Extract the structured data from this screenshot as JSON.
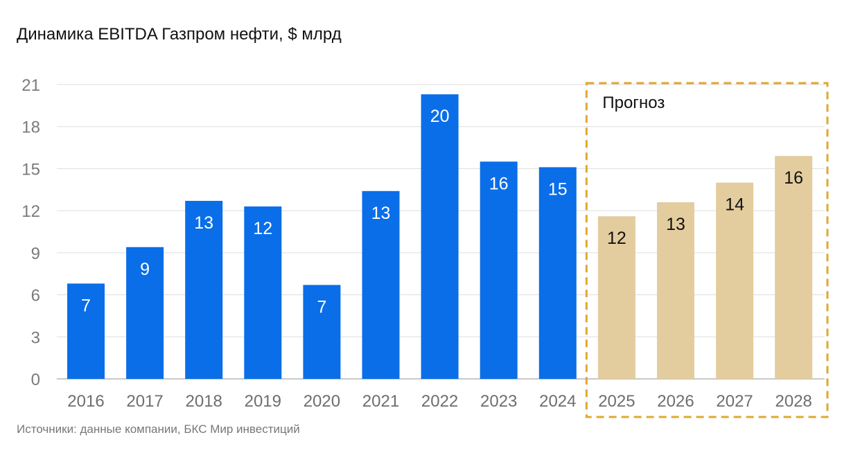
{
  "title": "Динамика EBITDA Газпром нефти, $ млрд",
  "source": "Источники: данные компании, БКС Мир инвестиций",
  "colors": {
    "actual": "#0a6ee8",
    "forecast": "#e3cc9e",
    "forecast_border": "#e0a82e",
    "grid": "#dddddd",
    "axis": "#c8c8c8"
  },
  "chart_data": {
    "type": "bar",
    "title": "Динамика EBITDA Газпром нефти, $ млрд",
    "categories": [
      "2016",
      "2017",
      "2018",
      "2019",
      "2020",
      "2021",
      "2022",
      "2023",
      "2024",
      "2025",
      "2026",
      "2027",
      "2028"
    ],
    "values": [
      6.8,
      9.4,
      12.7,
      12.3,
      6.7,
      13.4,
      20.3,
      15.5,
      15.1,
      11.6,
      12.6,
      14.0,
      15.9
    ],
    "labels": [
      "7",
      "9",
      "13",
      "12",
      "7",
      "13",
      "20",
      "16",
      "15",
      "12",
      "13",
      "14",
      "16"
    ],
    "forecast_from_index": 9,
    "forecast_label": "Прогноз",
    "ylim": [
      0,
      21
    ],
    "yticks": [
      0,
      3,
      6,
      9,
      12,
      15,
      18,
      21
    ],
    "grid": true,
    "xlabel": "",
    "ylabel": ""
  }
}
